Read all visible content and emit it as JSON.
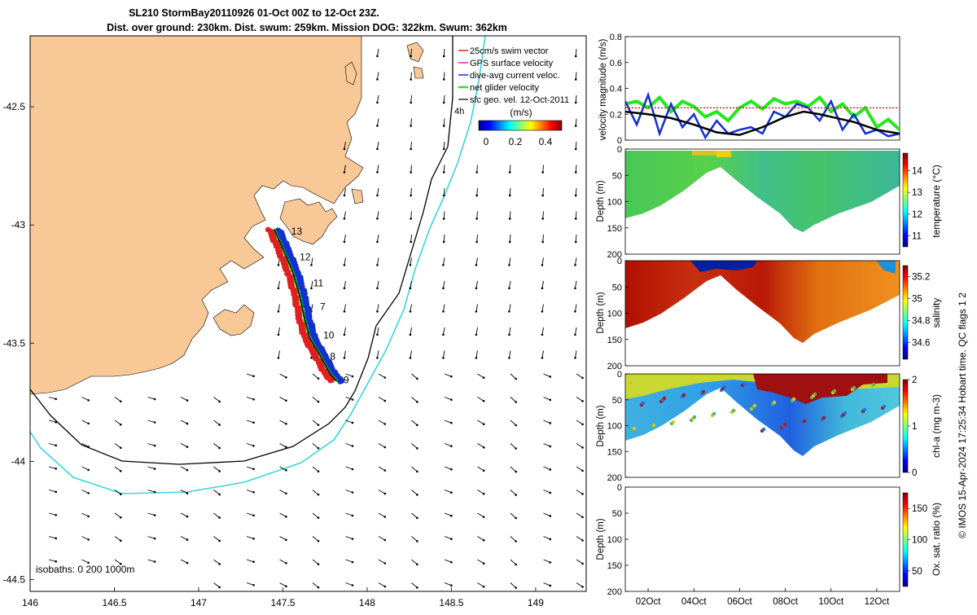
{
  "title": {
    "line1": "SL210 StormBay20110926 01-Oct 00Z to 12-Oct 23Z.",
    "line2": "Dist. over ground: 230km. Dist. swum: 259km. Mission DOG: 322km. Swum: 362km"
  },
  "credit": "© IMOS 15-Apr-2024 17:25:34 Hobart time. QC flags 1 2",
  "colors": {
    "land": "#F8C897",
    "isobath_200": "#000000",
    "isobath_1000": "#38D6DC",
    "track_black": "#000000",
    "swim_red": "#E02020",
    "dive_blue": "#1030D0",
    "glider_green": "#22E81C",
    "gps_magenta": "#E020E0"
  },
  "chart_data": [
    {
      "type": "map",
      "name": "Glider track map",
      "xlim": [
        146,
        149.3
      ],
      "ylim": [
        -44.55,
        -42.2
      ],
      "xticks": [
        "146",
        "146.5",
        "147",
        "147.5",
        "148",
        "148.5",
        "149"
      ],
      "yticks": [
        "-42.5",
        "-43",
        "-43.5",
        "-44",
        "-44.5"
      ],
      "legend": [
        {
          "label": "25cm/s swim vector",
          "color": "#E02020"
        },
        {
          "label": "GPS surface velocity",
          "color": "#E020E0"
        },
        {
          "label": "dive-avg current veloc.",
          "color": "#1030D0"
        },
        {
          "label": "net glider velocity",
          "color": "#22E81C"
        },
        {
          "label": "sfc geo. vel. 12-Oct-2011",
          "color": "#000000"
        }
      ],
      "legend_hour_label": "4h",
      "colorbar": {
        "label": "(m/s)",
        "ticks": [
          "0",
          "0.2",
          "0.4"
        ],
        "range": [
          0,
          0.5
        ]
      },
      "isobath_note": "isobaths: 0   200  1000m",
      "track": [
        [
          147.45,
          -43.02
        ],
        [
          147.5,
          -43.1
        ],
        [
          147.56,
          -43.2
        ],
        [
          147.6,
          -43.3
        ],
        [
          147.63,
          -43.4
        ],
        [
          147.66,
          -43.48
        ],
        [
          147.72,
          -43.55
        ],
        [
          147.78,
          -43.63
        ],
        [
          147.82,
          -43.66
        ]
      ],
      "track_day_labels": [
        {
          "day": "13",
          "lon": 147.55,
          "lat": -43.04
        },
        {
          "day": "12",
          "lon": 147.6,
          "lat": -43.15
        },
        {
          "day": "11",
          "lon": 147.68,
          "lat": -43.26
        },
        {
          "day": "7",
          "lon": 147.72,
          "lat": -43.36
        },
        {
          "day": "10",
          "lon": 147.74,
          "lat": -43.48
        },
        {
          "day": "8",
          "lon": 147.78,
          "lat": -43.57
        },
        {
          "day": "9",
          "lon": 147.86,
          "lat": -43.67
        }
      ]
    },
    {
      "type": "line",
      "name": "Velocity magnitude",
      "ylabel": "velocity magnitude (m/s)",
      "ylim": [
        0,
        0.8
      ],
      "yticks": [
        "0",
        "0.2",
        "0.4",
        "0.6",
        "0.8"
      ],
      "xlim": [
        1,
        13
      ],
      "series": [
        {
          "name": "net glider velocity",
          "color": "#22E81C",
          "x": [
            1,
            1.5,
            2,
            2.5,
            3,
            3.5,
            4,
            4.5,
            5,
            5.5,
            6,
            6.5,
            7,
            7.5,
            8,
            8.5,
            9,
            9.5,
            10,
            10.5,
            11,
            11.5,
            12,
            12.5,
            13
          ],
          "values": [
            0.28,
            0.3,
            0.25,
            0.33,
            0.22,
            0.3,
            0.26,
            0.18,
            0.22,
            0.15,
            0.25,
            0.3,
            0.24,
            0.32,
            0.28,
            0.3,
            0.26,
            0.33,
            0.22,
            0.28,
            0.18,
            0.25,
            0.1,
            0.16,
            0.08
          ]
        },
        {
          "name": "dive-avg current veloc.",
          "color": "#1030D0",
          "x": [
            1,
            1.5,
            2,
            2.5,
            3,
            3.5,
            4,
            4.5,
            5,
            5.5,
            6,
            6.5,
            7,
            7.5,
            8,
            8.5,
            9,
            9.5,
            10,
            10.5,
            11,
            11.5,
            12,
            12.5,
            13
          ],
          "values": [
            0.3,
            0.12,
            0.35,
            0.05,
            0.28,
            0.1,
            0.2,
            0.02,
            0.15,
            0.05,
            0.08,
            0.1,
            0.05,
            0.22,
            0.18,
            0.28,
            0.25,
            0.15,
            0.3,
            0.08,
            0.2,
            0.05,
            0.08,
            0.03,
            0.05
          ]
        },
        {
          "name": "swim speed",
          "color": "#E02020",
          "x": [
            1,
            13
          ],
          "values": [
            0.25,
            0.25
          ]
        },
        {
          "name": "mean",
          "color": "#000000",
          "x": [
            1,
            2,
            3,
            4,
            5,
            6,
            7,
            8,
            8.8,
            9.5,
            10,
            11,
            12,
            13
          ],
          "values": [
            0.22,
            0.2,
            0.17,
            0.12,
            0.06,
            0.04,
            0.1,
            0.18,
            0.22,
            0.2,
            0.18,
            0.14,
            0.08,
            0.05
          ]
        }
      ]
    },
    {
      "type": "heatmap",
      "name": "temperature section",
      "ylabel": "Depth (m)",
      "ylim": [
        200,
        0
      ],
      "yticks": [
        "0",
        "50",
        "100",
        "150",
        "200"
      ],
      "colorbar_label": "temperature (°C)",
      "colorbar_ticks": [
        "11",
        "12",
        "13",
        "14"
      ],
      "colorbar_range": [
        10.5,
        14.8
      ]
    },
    {
      "type": "heatmap",
      "name": "salinity section",
      "ylabel": "Depth (m)",
      "ylim": [
        200,
        0
      ],
      "yticks": [
        "0",
        "50",
        "100",
        "150",
        "200"
      ],
      "colorbar_label": "salinity",
      "colorbar_ticks": [
        "34.6",
        "34.8",
        "35",
        "35.2"
      ],
      "colorbar_range": [
        34.45,
        35.3
      ]
    },
    {
      "type": "heatmap",
      "name": "chlorophyll section",
      "ylabel": "Depth (m)",
      "ylim": [
        200,
        0
      ],
      "yticks": [
        "0",
        "50",
        "100",
        "150",
        "200"
      ],
      "colorbar_label": "chl-a (mg m-3)",
      "colorbar_ticks": [
        "0",
        "1",
        "2"
      ],
      "colorbar_range": [
        0,
        2
      ]
    },
    {
      "type": "heatmap",
      "name": "oxygen section",
      "ylabel": "Depth (m)",
      "ylim": [
        200,
        0
      ],
      "yticks": [
        "0",
        "50",
        "100",
        "150",
        "200"
      ],
      "colorbar_label": "Ox. sat. ratio (%)",
      "colorbar_ticks": [
        "50",
        "100",
        "150"
      ],
      "colorbar_range": [
        25,
        175
      ],
      "xtick_labels": [
        "02Oct",
        "04Oct",
        "06Oct",
        "08Oct",
        "10Oct",
        "12Oct"
      ]
    }
  ]
}
